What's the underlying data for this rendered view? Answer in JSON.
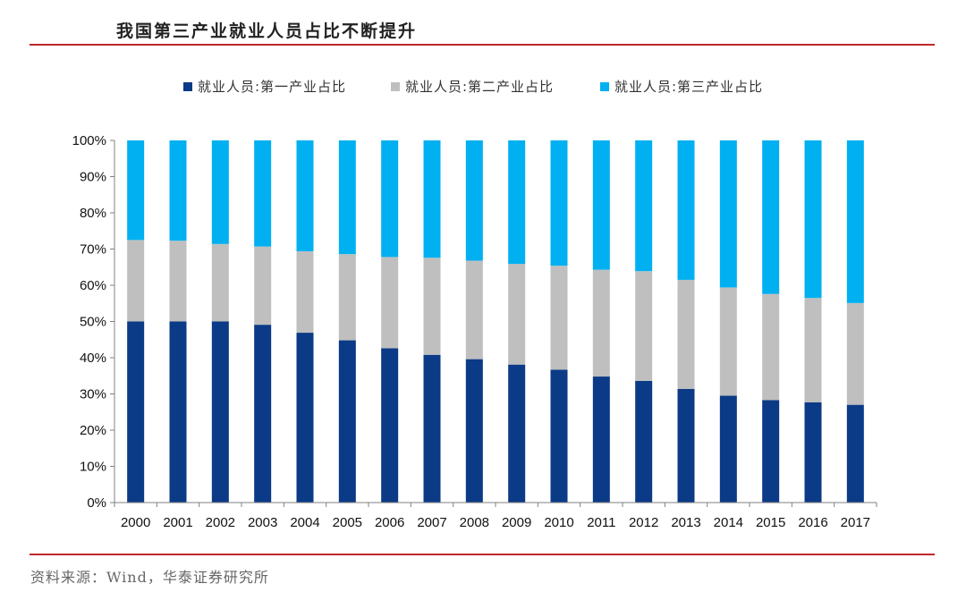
{
  "header": {
    "title": "我国第三产业就业人员占比不断提升"
  },
  "footer": {
    "source": "资料来源：Wind，华泰证券研究所"
  },
  "colors": {
    "primary": "#0b3a86",
    "secondary": "#bfbfbf",
    "tertiary": "#00b0f0",
    "rule": "#c0282d"
  },
  "chart_data": {
    "type": "bar",
    "stacked": true,
    "title": "我国第三产业就业人员占比不断提升",
    "categories": [
      "2000",
      "2001",
      "2002",
      "2003",
      "2004",
      "2005",
      "2006",
      "2007",
      "2008",
      "2009",
      "2010",
      "2011",
      "2012",
      "2013",
      "2014",
      "2015",
      "2016",
      "2017"
    ],
    "series": [
      {
        "name": "就业人员:第一产业占比",
        "color": "#0b3a86",
        "values": [
          50.0,
          50.0,
          50.0,
          49.1,
          46.9,
          44.8,
          42.6,
          40.8,
          39.6,
          38.1,
          36.7,
          34.8,
          33.6,
          31.4,
          29.5,
          28.3,
          27.7,
          27.0
        ]
      },
      {
        "name": "就业人员:第二产业占比",
        "color": "#bfbfbf",
        "values": [
          22.5,
          22.3,
          21.4,
          21.6,
          22.5,
          23.8,
          25.2,
          26.8,
          27.2,
          27.8,
          28.7,
          29.5,
          30.3,
          30.1,
          29.9,
          29.3,
          28.8,
          28.1
        ]
      },
      {
        "name": "就业人员:第三产业占比",
        "color": "#00b0f0",
        "values": [
          27.5,
          27.7,
          28.6,
          29.3,
          30.6,
          31.4,
          32.2,
          32.4,
          33.2,
          34.1,
          34.6,
          35.7,
          36.1,
          38.5,
          40.6,
          42.4,
          43.5,
          44.9
        ]
      }
    ],
    "y_ticks": [
      "0%",
      "10%",
      "20%",
      "30%",
      "40%",
      "50%",
      "60%",
      "70%",
      "80%",
      "90%",
      "100%"
    ],
    "ylim": [
      0,
      100
    ],
    "grid": false,
    "legend_position": "top"
  }
}
